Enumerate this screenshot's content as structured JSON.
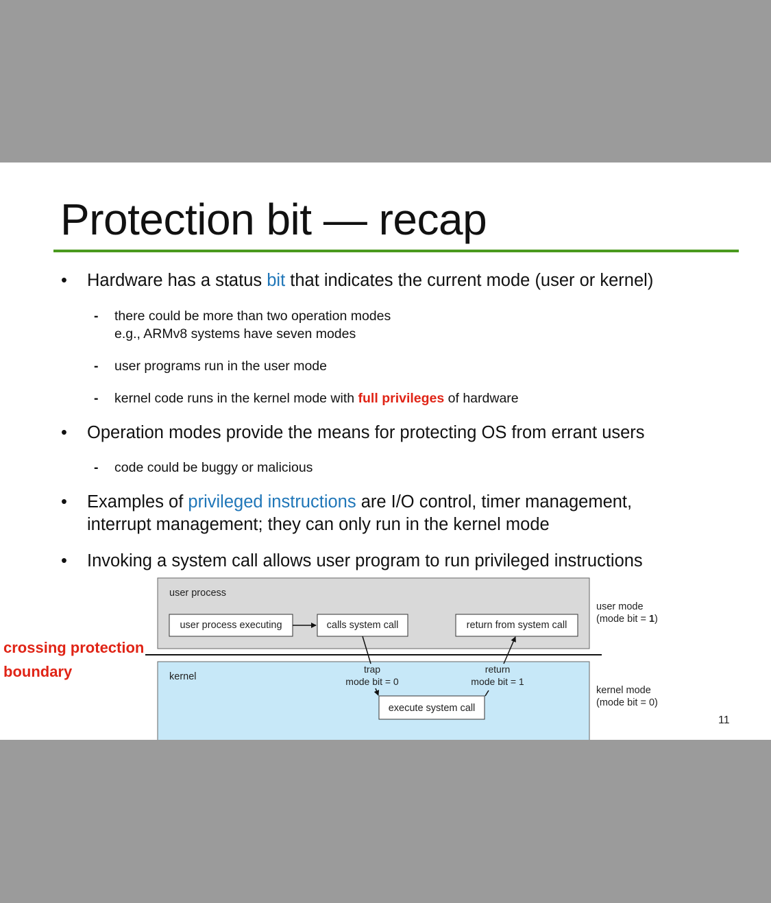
{
  "slide": {
    "title": "Protection bit — recap",
    "page_number": "11",
    "bullets": [
      {
        "pre": "Hardware has a status ",
        "highlight": "bit",
        "post": " that indicates the current mode (user or kernel)"
      },
      {
        "text": "Operation modes provide the means for protecting OS from errant users"
      },
      {
        "highlight": "privileged instructions",
        "pre": "Examples of ",
        "post": " are I/O control, timer management,",
        "line2": "interrupt management; they can only run in the kernel mode"
      },
      {
        "text": "Invoking a system call allows user program to run privileged instructions"
      }
    ],
    "subs": {
      "b1_1_line1": "there could be more than two operation modes",
      "b1_1_line2": "e.g., ARMv8 systems have seven modes",
      "b1_2": "user programs run in the user mode",
      "b1_3_pre": "kernel code runs in the kernel mode with ",
      "b1_3_highlight": "full privileges",
      "b1_3_post": " of hardware",
      "b2_1": "code could be buggy or malicious"
    },
    "bullet_symbol": "•",
    "dash_symbol": "-",
    "colors": {
      "rule": "#4a9a1e",
      "link_blue": "#1f76b8",
      "emphasis_red": "#e02416",
      "user_box": "#d9d9d9",
      "kernel_box": "#c7e8f8"
    }
  },
  "annotation": {
    "line1": "crossing protection",
    "line2": "boundary"
  },
  "diagram": {
    "user_area_label": "user process",
    "kernel_area_label": "kernel",
    "box_user_exec": "user process executing",
    "box_calls": "calls system call",
    "box_return": "return from system call",
    "box_execute": "execute system call",
    "trap_label": "trap",
    "trap_mode": "mode bit = 0",
    "return_label": "return",
    "return_mode": "mode bit = 1",
    "user_mode_label": "user mode",
    "user_mode_bit_pre": "(mode bit = ",
    "user_mode_bit_val": "1",
    "user_mode_bit_post": ")",
    "kernel_mode_label": "kernel mode",
    "kernel_mode_bit": "(mode bit = 0)"
  }
}
